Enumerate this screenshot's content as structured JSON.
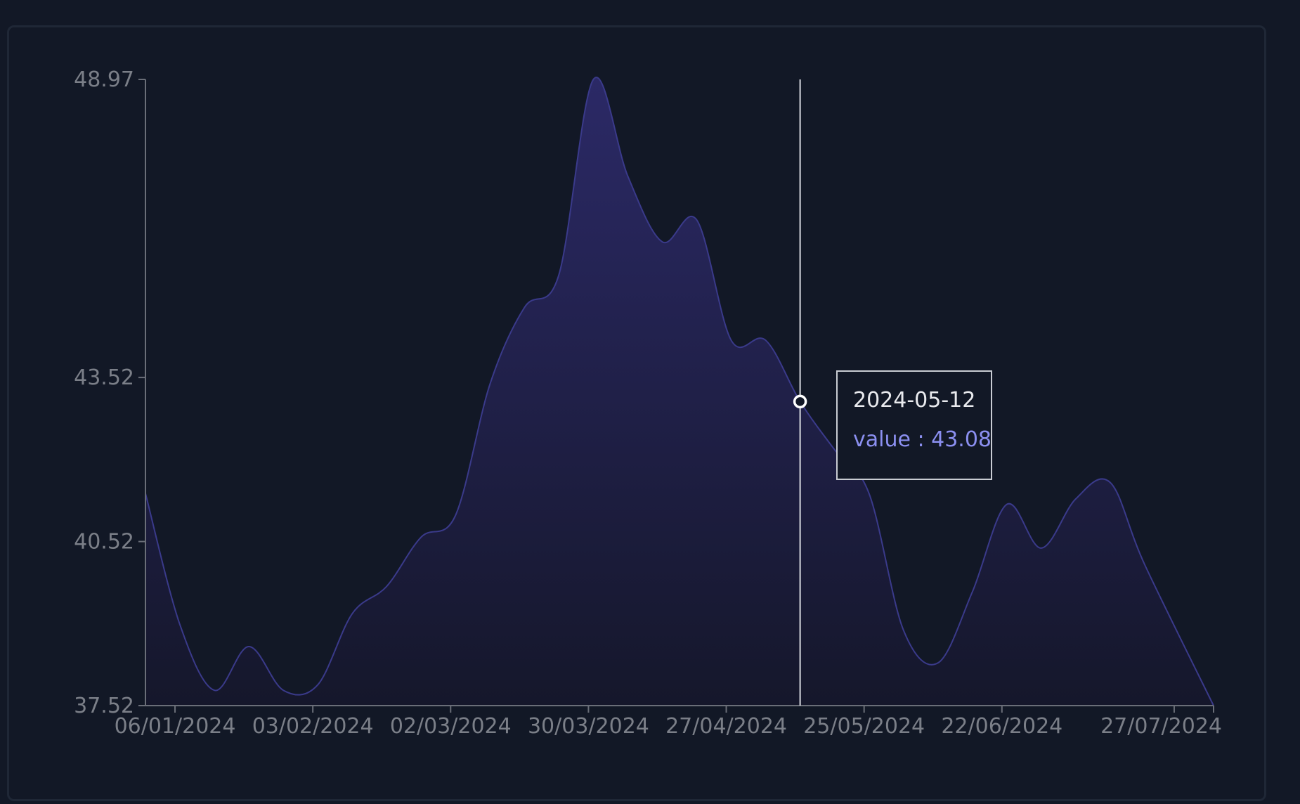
{
  "chart_data": {
    "type": "area",
    "title": "",
    "xlabel": "",
    "ylabel": "",
    "x": [
      "2023-12-31",
      "2024-01-07",
      "2024-01-14",
      "2024-01-21",
      "2024-01-28",
      "2024-02-04",
      "2024-02-11",
      "2024-02-18",
      "2024-02-25",
      "2024-03-03",
      "2024-03-10",
      "2024-03-17",
      "2024-03-24",
      "2024-03-31",
      "2024-04-07",
      "2024-04-14",
      "2024-04-21",
      "2024-04-28",
      "2024-05-05",
      "2024-05-12",
      "2024-05-19",
      "2024-05-26",
      "2024-06-02",
      "2024-06-09",
      "2024-06-16",
      "2024-06-23",
      "2024-06-30",
      "2024-07-07",
      "2024-07-14",
      "2024-07-21",
      "2024-08-04"
    ],
    "values": [
      41.4,
      39.0,
      37.8,
      38.6,
      37.8,
      37.9,
      39.2,
      39.7,
      40.6,
      41.0,
      43.4,
      44.8,
      45.4,
      48.97,
      47.2,
      46.0,
      46.4,
      44.2,
      44.2,
      43.08,
      42.2,
      41.4,
      38.9,
      38.3,
      39.6,
      41.2,
      40.4,
      41.3,
      41.6,
      40.1,
      37.52
    ],
    "ylim": [
      37.52,
      48.97
    ],
    "y_ticks": [
      "48.97",
      "43.52",
      "40.52",
      "37.52"
    ],
    "x_ticks": [
      {
        "date": "2024-01-06",
        "label": "06/01/2024"
      },
      {
        "date": "2024-02-03",
        "label": "03/02/2024"
      },
      {
        "date": "2024-03-02",
        "label": "02/03/2024"
      },
      {
        "date": "2024-03-30",
        "label": "30/03/2024"
      },
      {
        "date": "2024-04-27",
        "label": "27/04/2024"
      },
      {
        "date": "2024-05-25",
        "label": "25/05/2024"
      },
      {
        "date": "2024-06-22",
        "label": "22/06/2024"
      },
      {
        "date": "2024-07-27",
        "label": "27/07/2024"
      }
    ],
    "hover": {
      "date": "2024-05-12",
      "value": "43.08"
    },
    "colors": {
      "fill_top": "#2b2966",
      "fill_bottom": "#15172b",
      "line": "#3a3a8a",
      "crosshair": "#d8dae0",
      "tooltip_value": "#8b8ff0"
    },
    "grid": false,
    "legend": "none"
  },
  "tooltip": {
    "date": "2024-05-12",
    "value_text": "value : 43.08"
  }
}
